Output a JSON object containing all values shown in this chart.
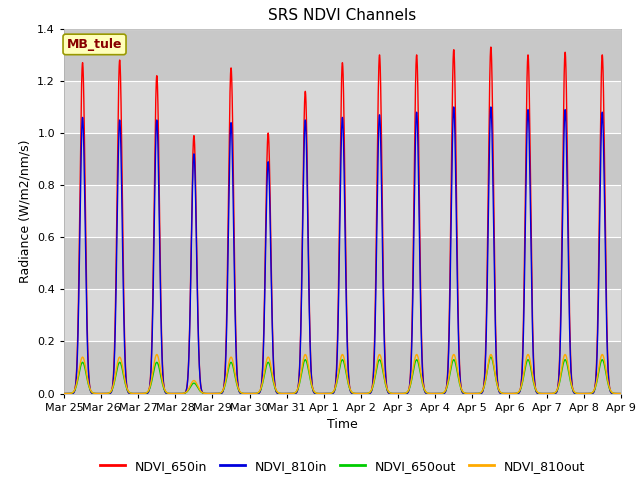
{
  "title": "SRS NDVI Channels",
  "xlabel": "Time",
  "ylabel": "Radiance (W/m2/nm/s)",
  "ylim": [
    0,
    1.4
  ],
  "annotation_text": "MB_tule",
  "line_colors": {
    "NDVI_650in": "#ff0000",
    "NDVI_810in": "#0000dd",
    "NDVI_650out": "#00cc00",
    "NDVI_810out": "#ffaa00"
  },
  "legend_labels": [
    "NDVI_650in",
    "NDVI_810in",
    "NDVI_650out",
    "NDVI_810out"
  ],
  "xtick_labels": [
    "Mar 25",
    "Mar 26",
    "Mar 27",
    "Mar 28",
    "Mar 29",
    "Mar 30",
    "Mar 31",
    "Apr 1",
    "Apr 2",
    "Apr 3",
    "Apr 4",
    "Apr 5",
    "Apr 6",
    "Apr 7",
    "Apr 8",
    "Apr 9"
  ],
  "bg_color": "#dcdcdc",
  "fig_bg_color": "#ffffff",
  "grid_color": "#ffffff",
  "title_fontsize": 11,
  "label_fontsize": 9,
  "tick_fontsize": 8,
  "peak_650in": [
    1.27,
    1.28,
    1.22,
    0.99,
    1.25,
    1.0,
    1.16,
    1.27,
    1.3,
    1.3,
    1.32,
    1.33,
    1.3,
    1.31,
    1.3
  ],
  "peak_810in": [
    1.06,
    1.05,
    1.05,
    0.92,
    1.04,
    0.89,
    1.05,
    1.06,
    1.07,
    1.08,
    1.1,
    1.1,
    1.09,
    1.09,
    1.08
  ],
  "peak_650out": [
    0.12,
    0.12,
    0.12,
    0.04,
    0.12,
    0.12,
    0.13,
    0.13,
    0.13,
    0.13,
    0.13,
    0.14,
    0.13,
    0.13,
    0.13
  ],
  "peak_810out": [
    0.14,
    0.14,
    0.15,
    0.05,
    0.14,
    0.14,
    0.15,
    0.15,
    0.15,
    0.15,
    0.15,
    0.15,
    0.15,
    0.15,
    0.15
  ],
  "sigma_in": 0.07,
  "sigma_out": 0.1,
  "linewidth": 1.0
}
